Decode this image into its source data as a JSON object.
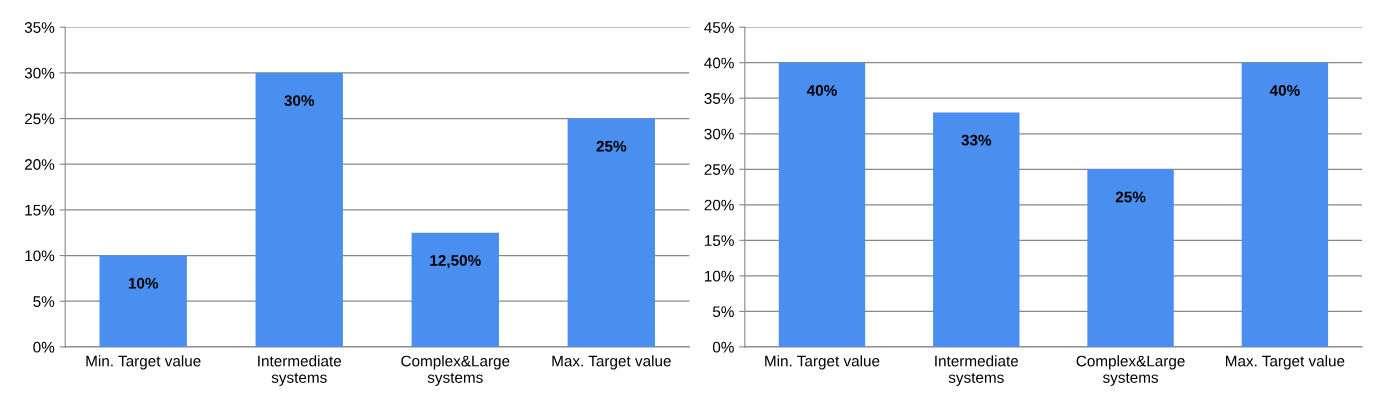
{
  "chart_data": [
    {
      "type": "bar",
      "categories": [
        "Min. Target value",
        "Intermediate\nsystems",
        "Complex&Large\nsystems",
        "Max. Target value"
      ],
      "values": [
        10,
        30,
        12.5,
        25
      ],
      "color": "#4a8ff0",
      "value_labels": [
        "10%",
        "30%",
        "12,50%",
        "25%"
      ],
      "ylim": [
        0,
        35
      ],
      "yticks": [
        {
          "value": 0,
          "label": "0%"
        },
        {
          "value": 5,
          "label": "5%"
        },
        {
          "value": 10,
          "label": "10%"
        },
        {
          "value": 15,
          "label": "15%"
        },
        {
          "value": 20,
          "label": "20%"
        },
        {
          "value": 25,
          "label": "25%"
        },
        {
          "value": 30,
          "label": "30%"
        },
        {
          "value": 35,
          "label": "35%"
        }
      ],
      "grid": "y",
      "legend": false
    },
    {
      "type": "bar",
      "categories": [
        "Min. Target value",
        "Intermediate\nsystems",
        "Complex&Large\nsystems",
        "Max. Target value"
      ],
      "values": [
        40,
        33,
        25,
        40
      ],
      "color": "#4a8ff0",
      "value_labels": [
        "40%",
        "33%",
        "25%",
        "40%"
      ],
      "ylim": [
        0,
        45
      ],
      "yticks": [
        {
          "value": 0,
          "label": "0%"
        },
        {
          "value": 5,
          "label": "5%"
        },
        {
          "value": 10,
          "label": "10%"
        },
        {
          "value": 15,
          "label": "15%"
        },
        {
          "value": 20,
          "label": "20%"
        },
        {
          "value": 25,
          "label": "25%"
        },
        {
          "value": 30,
          "label": "30%"
        },
        {
          "value": 35,
          "label": "35%"
        },
        {
          "value": 40,
          "label": "40%"
        },
        {
          "value": 45,
          "label": "45%"
        }
      ],
      "grid": "y",
      "legend": false
    }
  ]
}
